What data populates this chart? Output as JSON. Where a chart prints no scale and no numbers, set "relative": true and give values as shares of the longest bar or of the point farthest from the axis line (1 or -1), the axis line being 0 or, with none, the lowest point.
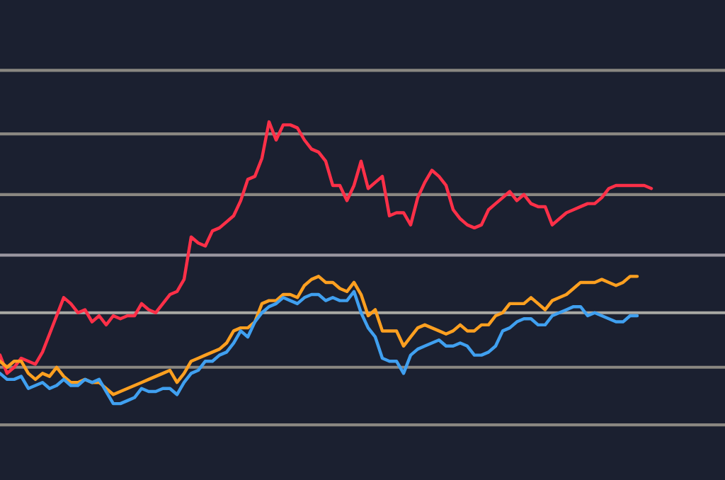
{
  "chart_data": {
    "type": "line",
    "relative": true,
    "categories": [
      null,
      null,
      null,
      null,
      null,
      null,
      null,
      null,
      null,
      null,
      null,
      null,
      null,
      null,
      null,
      null,
      null,
      null,
      null,
      null,
      null,
      null,
      null,
      null,
      null,
      null,
      null,
      null,
      null,
      null,
      null,
      null,
      null,
      null,
      null,
      null,
      null,
      null,
      null,
      null,
      null,
      null,
      null,
      null,
      null,
      null,
      null,
      null,
      null,
      null,
      null,
      null,
      null,
      null,
      null,
      null,
      null,
      null,
      null,
      null,
      null,
      null,
      null,
      null,
      null,
      null,
      null,
      null,
      null,
      null,
      null,
      null,
      null,
      null,
      null,
      null,
      null,
      null,
      null,
      null,
      null,
      null,
      null,
      null,
      null,
      null,
      null,
      null,
      null,
      null,
      null,
      null,
      null
    ],
    "series": [
      {
        "color": "#ff3048",
        "values": [
          0.23,
          0.17,
          0.19,
          0.22,
          0.21,
          0.2,
          0.24,
          0.3,
          0.36,
          0.42,
          0.4,
          0.37,
          0.38,
          0.34,
          0.36,
          0.33,
          0.36,
          0.35,
          0.36,
          0.36,
          0.4,
          0.38,
          0.37,
          0.4,
          0.43,
          0.44,
          0.48,
          0.62,
          0.6,
          0.59,
          0.64,
          0.65,
          0.67,
          0.69,
          0.74,
          0.81,
          0.82,
          0.88,
          1.0,
          0.94,
          0.99,
          0.99,
          0.98,
          0.94,
          0.91,
          0.9,
          0.87,
          0.79,
          0.79,
          0.74,
          0.79,
          0.87,
          0.78,
          0.8,
          0.82,
          0.69,
          0.7,
          0.7,
          0.66,
          0.75,
          0.8,
          0.84,
          0.82,
          0.79,
          0.71,
          0.68,
          0.66,
          0.65,
          0.66,
          0.71,
          0.73,
          0.75,
          0.77,
          0.74,
          0.76,
          0.73,
          0.72,
          0.72,
          0.66,
          0.68,
          0.7,
          0.71,
          0.72,
          0.73,
          0.73,
          0.75,
          0.78,
          0.79,
          0.79,
          0.79,
          0.79,
          0.79,
          0.78
        ]
      },
      {
        "color": "#ffa020",
        "values": [
          0.21,
          0.19,
          0.21,
          0.21,
          0.17,
          0.15,
          0.17,
          0.16,
          0.19,
          0.16,
          0.14,
          0.14,
          0.15,
          0.14,
          0.14,
          0.12,
          0.1,
          0.11,
          0.12,
          0.13,
          0.14,
          0.15,
          0.16,
          0.17,
          0.18,
          0.14,
          0.17,
          0.21,
          0.22,
          0.23,
          0.24,
          0.25,
          0.27,
          0.31,
          0.32,
          0.32,
          0.34,
          0.4,
          0.41,
          0.41,
          0.43,
          0.43,
          0.42,
          0.46,
          0.48,
          0.49,
          0.47,
          0.47,
          0.45,
          0.44,
          0.47,
          0.43,
          0.36,
          0.38,
          0.31,
          0.31,
          0.31,
          0.26,
          0.29,
          0.32,
          0.33,
          0.32,
          0.31,
          0.3,
          0.31,
          0.33,
          0.31,
          0.31,
          0.33,
          0.33,
          0.36,
          0.37,
          0.4,
          0.4,
          0.4,
          0.42,
          0.4,
          0.38,
          0.41,
          0.42,
          0.43,
          0.45,
          0.47,
          0.47,
          0.47,
          0.48,
          0.47,
          0.46,
          0.47,
          0.49,
          0.49,
          null,
          null
        ]
      },
      {
        "color": "#40a0f0",
        "values": [
          0.17,
          0.15,
          0.15,
          0.16,
          0.12,
          0.13,
          0.14,
          0.12,
          0.13,
          0.15,
          0.13,
          0.13,
          0.15,
          0.14,
          0.15,
          0.11,
          0.07,
          0.07,
          0.08,
          0.09,
          0.12,
          0.11,
          0.11,
          0.12,
          0.12,
          0.1,
          0.14,
          0.17,
          0.18,
          0.21,
          0.21,
          0.23,
          0.24,
          0.27,
          0.31,
          0.29,
          0.34,
          0.37,
          0.39,
          0.4,
          0.42,
          0.41,
          0.4,
          0.42,
          0.43,
          0.43,
          0.41,
          0.42,
          0.41,
          0.41,
          0.44,
          0.37,
          0.32,
          0.29,
          0.22,
          0.21,
          0.21,
          0.17,
          0.23,
          0.25,
          0.26,
          0.27,
          0.28,
          0.26,
          0.26,
          0.27,
          0.26,
          0.23,
          0.23,
          0.24,
          0.26,
          0.31,
          0.32,
          0.34,
          0.35,
          0.35,
          0.33,
          0.33,
          0.36,
          0.37,
          0.38,
          0.39,
          0.39,
          0.36,
          0.37,
          0.36,
          0.35,
          0.34,
          0.34,
          0.36,
          0.36,
          null,
          null
        ]
      }
    ],
    "ref_lines": [
      {
        "axis": "y",
        "value": 1.17,
        "color": "#8a8781"
      },
      {
        "axis": "y",
        "value": 0.96,
        "color": "#8a8781"
      },
      {
        "axis": "y",
        "value": 0.76,
        "color": "#8a8781"
      },
      {
        "axis": "y",
        "value": 0.56,
        "color": "#9a96a0"
      },
      {
        "axis": "y",
        "value": 0.37,
        "color": "#a9a9a4"
      },
      {
        "axis": "y",
        "value": 0.19,
        "color": "#8a8781"
      }
    ]
  }
}
